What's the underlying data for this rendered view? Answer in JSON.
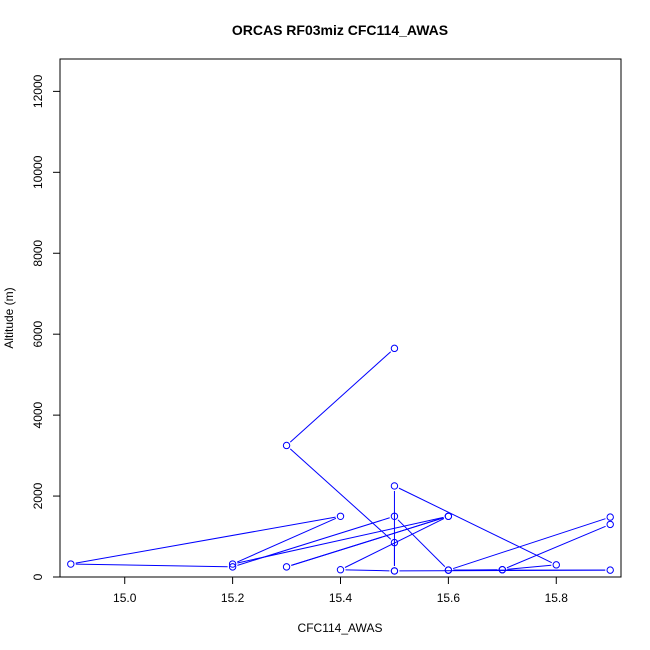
{
  "chart_data": {
    "type": "line",
    "title": "ORCAS RF03miz CFC114_AWAS",
    "xlabel": "CFC114_AWAS",
    "ylabel": "Altitude (m)",
    "xlim": [
      14.88,
      15.92
    ],
    "ylim": [
      0,
      12800
    ],
    "x_ticks": [
      "15.0",
      "15.2",
      "15.4",
      "15.6",
      "15.8"
    ],
    "x_tick_values": [
      15.0,
      15.2,
      15.4,
      15.6,
      15.8
    ],
    "y_ticks": [
      "0",
      "2000",
      "4000",
      "6000",
      "8000",
      "10000",
      "12000"
    ],
    "y_tick_values": [
      0,
      2000,
      4000,
      6000,
      8000,
      10000,
      12000
    ],
    "grid": false,
    "marker": "open-circle",
    "color": "#0000ff",
    "series": [
      {
        "x": [
          15.5,
          15.3,
          15.5,
          15.5,
          15.4,
          15.6,
          15.3,
          15.6,
          15.2,
          15.4,
          14.9,
          15.2,
          15.5,
          15.6,
          15.9,
          15.9,
          15.7,
          15.8,
          15.5,
          15.5,
          15.9,
          15.6,
          15.7
        ],
        "y": [
          5650,
          3250,
          850,
          150,
          180,
          1500,
          250,
          1500,
          320,
          1500,
          320,
          250,
          1500,
          170,
          1480,
          1300,
          180,
          300,
          2250,
          150,
          170,
          170,
          180
        ]
      }
    ]
  }
}
